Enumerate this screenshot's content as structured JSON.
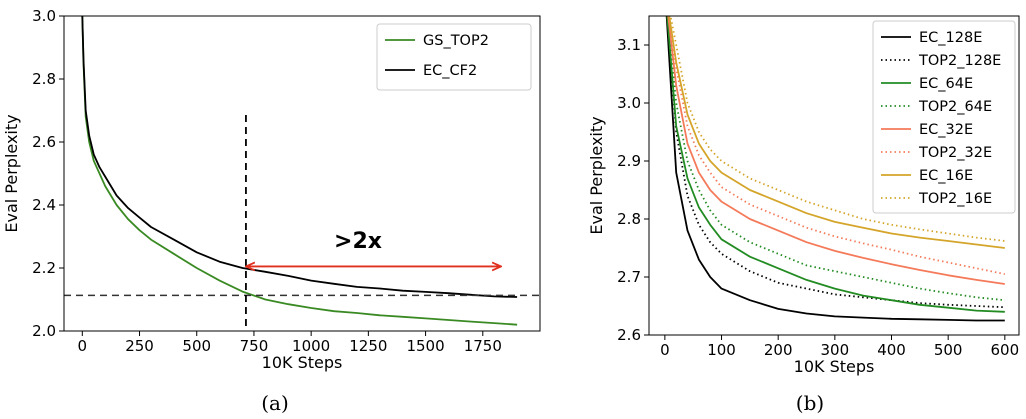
{
  "figure": {
    "captions": [
      "(a)",
      "(b)"
    ]
  },
  "chart_data": [
    {
      "type": "line",
      "panel": "(a)",
      "xlabel": "10K Steps",
      "ylabel": "Eval Perplexity",
      "xlim": [
        -80,
        2000
      ],
      "ylim": [
        2.0,
        3.0
      ],
      "xticks": [
        0,
        250,
        500,
        750,
        1000,
        1250,
        1500,
        1750
      ],
      "yticks": [
        2.0,
        2.2,
        2.4,
        2.6,
        2.8,
        3.0
      ],
      "ytick_labels": [
        "2.0",
        "2.2",
        "2.4",
        "2.6",
        "2.8",
        "3.0"
      ],
      "legend_position": "top-right",
      "grid": false,
      "annotation": ">2x",
      "vline_x": 715,
      "hline_y": 2.113,
      "arrow": {
        "x_from": 715,
        "x_to": 1830,
        "y": 2.205,
        "color": "#e0301e"
      },
      "series": [
        {
          "name": "GS_TOP2",
          "color": "#3a8a23",
          "x": [
            0,
            5,
            15,
            30,
            50,
            75,
            100,
            150,
            200,
            250,
            300,
            400,
            500,
            600,
            700,
            800,
            900,
            1000,
            1100,
            1200,
            1300,
            1400,
            1500,
            1600,
            1700,
            1800,
            1900
          ],
          "y": [
            3.0,
            2.85,
            2.68,
            2.6,
            2.54,
            2.5,
            2.46,
            2.4,
            2.355,
            2.32,
            2.29,
            2.245,
            2.2,
            2.16,
            2.125,
            2.1,
            2.085,
            2.073,
            2.063,
            2.057,
            2.05,
            2.045,
            2.04,
            2.035,
            2.03,
            2.025,
            2.02
          ]
        },
        {
          "name": "EC_CF2",
          "color": "#000000",
          "x": [
            0,
            5,
            15,
            30,
            50,
            75,
            100,
            150,
            200,
            250,
            300,
            400,
            500,
            600,
            700,
            800,
            900,
            1000,
            1100,
            1200,
            1300,
            1400,
            1500,
            1600,
            1700,
            1800,
            1900
          ],
          "y": [
            3.0,
            2.86,
            2.7,
            2.62,
            2.56,
            2.52,
            2.49,
            2.43,
            2.39,
            2.36,
            2.33,
            2.29,
            2.25,
            2.22,
            2.2,
            2.188,
            2.175,
            2.16,
            2.15,
            2.14,
            2.135,
            2.128,
            2.124,
            2.12,
            2.115,
            2.11,
            2.108
          ]
        }
      ]
    },
    {
      "type": "line",
      "panel": "(b)",
      "xlabel": "10K Steps",
      "ylabel": "Eval Perplexity",
      "xlim": [
        -28,
        625
      ],
      "ylim": [
        2.6,
        3.15
      ],
      "xticks": [
        0,
        100,
        200,
        300,
        400,
        500,
        600
      ],
      "yticks": [
        2.6,
        2.7,
        2.8,
        2.9,
        3.0,
        3.1
      ],
      "ytick_labels": [
        "2.6",
        "2.7",
        "2.8",
        "2.9",
        "3.0",
        "3.1"
      ],
      "legend_position": "top-right",
      "grid": false,
      "series": [
        {
          "name": "EC_128E",
          "color": "#000000",
          "dash": "solid",
          "x": [
            0,
            20,
            40,
            60,
            80,
            100,
            150,
            200,
            250,
            300,
            350,
            400,
            450,
            500,
            550,
            600
          ],
          "y": [
            3.2,
            2.88,
            2.78,
            2.73,
            2.7,
            2.68,
            2.66,
            2.645,
            2.637,
            2.632,
            2.63,
            2.628,
            2.627,
            2.626,
            2.625,
            2.625
          ]
        },
        {
          "name": "TOP2_128E",
          "color": "#000000",
          "dash": "dotted",
          "x": [
            0,
            20,
            40,
            60,
            80,
            100,
            150,
            200,
            250,
            300,
            350,
            400,
            450,
            500,
            550,
            600
          ],
          "y": [
            3.2,
            2.95,
            2.84,
            2.79,
            2.76,
            2.74,
            2.71,
            2.69,
            2.68,
            2.67,
            2.665,
            2.66,
            2.655,
            2.652,
            2.65,
            2.648
          ]
        },
        {
          "name": "EC_64E",
          "color": "#228b22",
          "dash": "solid",
          "x": [
            0,
            20,
            40,
            60,
            80,
            100,
            150,
            200,
            250,
            300,
            350,
            400,
            450,
            500,
            550,
            600
          ],
          "y": [
            3.2,
            2.96,
            2.87,
            2.82,
            2.79,
            2.765,
            2.735,
            2.715,
            2.695,
            2.68,
            2.668,
            2.66,
            2.652,
            2.647,
            2.642,
            2.64
          ]
        },
        {
          "name": "TOP2_64E",
          "color": "#228b22",
          "dash": "dotted",
          "x": [
            0,
            20,
            40,
            60,
            80,
            100,
            150,
            200,
            250,
            300,
            350,
            400,
            450,
            500,
            550,
            600
          ],
          "y": [
            3.2,
            3.0,
            2.9,
            2.85,
            2.815,
            2.79,
            2.76,
            2.74,
            2.72,
            2.71,
            2.7,
            2.69,
            2.68,
            2.672,
            2.665,
            2.66
          ]
        },
        {
          "name": "EC_32E",
          "color": "#f47a5a",
          "dash": "solid",
          "x": [
            0,
            20,
            40,
            60,
            80,
            100,
            150,
            200,
            250,
            300,
            350,
            400,
            450,
            500,
            550,
            600
          ],
          "y": [
            3.2,
            3.03,
            2.93,
            2.88,
            2.85,
            2.83,
            2.8,
            2.78,
            2.76,
            2.745,
            2.733,
            2.722,
            2.712,
            2.703,
            2.695,
            2.688
          ]
        },
        {
          "name": "TOP2_32E",
          "color": "#f47a5a",
          "dash": "dotted",
          "x": [
            0,
            20,
            40,
            60,
            80,
            100,
            150,
            200,
            250,
            300,
            350,
            400,
            450,
            500,
            550,
            600
          ],
          "y": [
            3.2,
            3.06,
            2.96,
            2.91,
            2.88,
            2.855,
            2.825,
            2.805,
            2.785,
            2.77,
            2.758,
            2.747,
            2.735,
            2.725,
            2.715,
            2.705
          ]
        },
        {
          "name": "EC_16E",
          "color": "#d4a52a",
          "dash": "solid",
          "x": [
            0,
            20,
            40,
            60,
            80,
            100,
            150,
            200,
            250,
            300,
            350,
            400,
            450,
            500,
            550,
            600
          ],
          "y": [
            3.2,
            3.07,
            2.98,
            2.93,
            2.9,
            2.88,
            2.85,
            2.83,
            2.81,
            2.795,
            2.785,
            2.775,
            2.768,
            2.762,
            2.756,
            2.75
          ]
        },
        {
          "name": "TOP2_16E",
          "color": "#d4a52a",
          "dash": "dotted",
          "x": [
            0,
            20,
            40,
            60,
            80,
            100,
            150,
            200,
            250,
            300,
            350,
            400,
            450,
            500,
            550,
            600
          ],
          "y": [
            3.2,
            3.1,
            3.0,
            2.95,
            2.92,
            2.9,
            2.87,
            2.85,
            2.83,
            2.815,
            2.8,
            2.79,
            2.782,
            2.775,
            2.768,
            2.762
          ]
        }
      ]
    }
  ]
}
